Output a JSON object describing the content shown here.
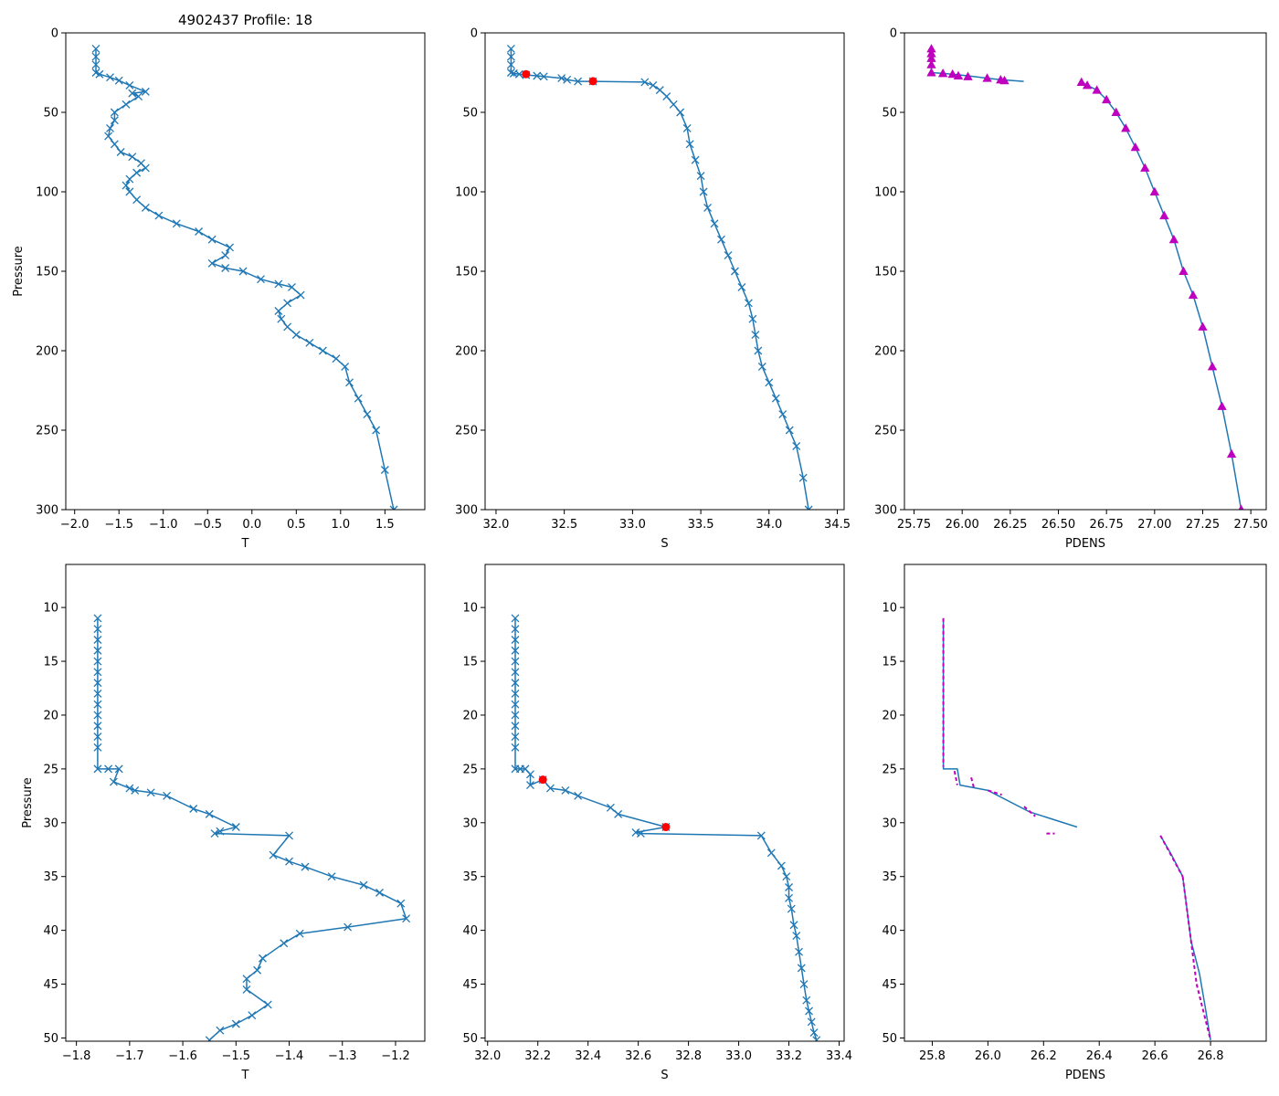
{
  "figure_title": "4902437 Profile: 18",
  "colors": {
    "series": "#1f77b4",
    "density": "#bf00bf",
    "marker_red": "#ff0000",
    "axes": "#000000"
  },
  "chart_data": [
    {
      "id": "t-full",
      "type": "line",
      "marker": "x",
      "title": "4902437 Profile: 18",
      "xlabel": "T",
      "ylabel": "Pressure",
      "xlim": [
        -2.1,
        1.95
      ],
      "ylim": [
        300,
        0
      ],
      "xticks": [
        -2.0,
        -1.5,
        -1.0,
        -0.5,
        0.0,
        0.5,
        1.0,
        1.5
      ],
      "xticklabels": [
        "−2.0",
        "−1.5",
        "−1.0",
        "−0.5",
        "0.0",
        "0.5",
        "1.0",
        "1.5"
      ],
      "yticks": [
        0,
        50,
        100,
        150,
        200,
        250,
        300
      ],
      "yticklabels": [
        "0",
        "50",
        "100",
        "150",
        "200",
        "250",
        "300"
      ],
      "x": [
        -1.76,
        -1.76,
        -1.76,
        -1.76,
        -1.72,
        -1.6,
        -1.5,
        -1.38,
        -1.2,
        -1.35,
        -1.28,
        -1.42,
        -1.55,
        -1.55,
        -1.6,
        -1.62,
        -1.55,
        -1.48,
        -1.35,
        -1.25,
        -1.2,
        -1.3,
        -1.38,
        -1.42,
        -1.38,
        -1.3,
        -1.2,
        -1.05,
        -0.85,
        -0.6,
        -0.45,
        -0.25,
        -0.3,
        -0.45,
        -0.3,
        -0.1,
        0.1,
        0.3,
        0.45,
        0.55,
        0.4,
        0.3,
        0.33,
        0.4,
        0.5,
        0.65,
        0.8,
        0.95,
        1.05,
        1.1,
        1.2,
        1.3,
        1.4,
        1.5,
        1.6
      ],
      "y": [
        10,
        15,
        20,
        25,
        26,
        28,
        30,
        33,
        37,
        38,
        40,
        45,
        50,
        55,
        60,
        65,
        70,
        75,
        78,
        82,
        85,
        88,
        92,
        96,
        100,
        105,
        110,
        115,
        120,
        125,
        130,
        135,
        140,
        145,
        148,
        150,
        155,
        158,
        160,
        165,
        170,
        175,
        180,
        185,
        190,
        195,
        200,
        205,
        210,
        220,
        230,
        240,
        250,
        275,
        300
      ]
    },
    {
      "id": "s-full",
      "type": "line",
      "marker": "x",
      "title": "",
      "xlabel": "S",
      "ylabel": "",
      "xlim": [
        31.92,
        34.55
      ],
      "ylim": [
        300,
        0
      ],
      "xticks": [
        32.0,
        32.5,
        33.0,
        33.5,
        34.0,
        34.5
      ],
      "xticklabels": [
        "32.0",
        "32.5",
        "33.0",
        "33.5",
        "34.0",
        "34.5"
      ],
      "yticks": [
        0,
        50,
        100,
        150,
        200,
        250,
        300
      ],
      "yticklabels": [
        "0",
        "50",
        "100",
        "150",
        "200",
        "250",
        "300"
      ],
      "x": [
        32.11,
        32.11,
        32.11,
        32.11,
        32.13,
        32.17,
        32.22,
        32.3,
        32.35,
        32.48,
        32.52,
        32.6,
        32.71,
        33.09,
        33.15,
        33.2,
        33.25,
        33.3,
        33.35,
        33.4,
        33.42,
        33.46,
        33.5,
        33.52,
        33.55,
        33.6,
        33.65,
        33.7,
        33.75,
        33.8,
        33.85,
        33.88,
        33.9,
        33.92,
        33.95,
        34.0,
        34.05,
        34.1,
        34.15,
        34.2,
        34.25,
        34.29
      ],
      "y": [
        10,
        15,
        20,
        25,
        25.5,
        26,
        26.5,
        27,
        27.5,
        28.5,
        29.5,
        30.5,
        30.5,
        31,
        33,
        36,
        40,
        45,
        50,
        60,
        70,
        80,
        90,
        100,
        110,
        120,
        130,
        140,
        150,
        160,
        170,
        180,
        190,
        200,
        210,
        220,
        230,
        240,
        250,
        260,
        280,
        300
      ],
      "highlight": {
        "x": [
          32.22,
          32.71
        ],
        "y": [
          26,
          30.4
        ]
      }
    },
    {
      "id": "pdens-full",
      "type": "line",
      "marker": "triangle",
      "title": "",
      "xlabel": "PDENS",
      "ylabel": "",
      "xlim": [
        25.7,
        27.58
      ],
      "ylim": [
        300,
        0
      ],
      "xticks": [
        25.75,
        26.0,
        26.25,
        26.5,
        26.75,
        27.0,
        27.25,
        27.5
      ],
      "xticklabels": [
        "25.75",
        "26.00",
        "26.25",
        "26.50",
        "26.75",
        "27.00",
        "27.25",
        "27.50"
      ],
      "yticks": [
        0,
        50,
        100,
        150,
        200,
        250,
        300
      ],
      "yticklabels": [
        "0",
        "50",
        "100",
        "150",
        "200",
        "250",
        "300"
      ],
      "segments": [
        {
          "x": [
            25.84,
            25.84,
            25.84,
            25.84,
            25.9,
            25.95,
            26.03,
            26.13,
            26.2,
            26.32
          ],
          "y": [
            10,
            15,
            20,
            25,
            25.5,
            26,
            27,
            28.5,
            29.5,
            30.5
          ]
        },
        {
          "x": [
            26.62,
            26.65,
            26.7,
            26.75,
            26.8,
            26.85,
            26.9,
            26.95,
            27.0,
            27.05,
            27.1,
            27.15,
            27.2,
            27.25,
            27.3,
            27.35,
            27.4,
            27.45
          ],
          "y": [
            31,
            33,
            36,
            42,
            50,
            60,
            72,
            85,
            100,
            115,
            130,
            150,
            165,
            185,
            210,
            235,
            265,
            300
          ]
        }
      ],
      "markers": {
        "x": [
          25.84,
          25.84,
          25.84,
          25.84,
          25.84,
          25.9,
          25.95,
          25.98,
          26.03,
          26.13,
          26.2,
          26.22,
          26.62,
          26.65,
          26.7,
          26.75,
          26.8,
          26.85,
          26.9,
          26.95,
          27.0,
          27.05,
          27.1,
          27.15,
          27.2,
          27.25,
          27.3,
          27.35,
          27.4,
          27.45
        ],
        "y": [
          10,
          13,
          16,
          20,
          25,
          25.5,
          26,
          27,
          27.5,
          28.5,
          29.5,
          30,
          31,
          33,
          36,
          42,
          50,
          60,
          72,
          85,
          100,
          115,
          130,
          150,
          165,
          185,
          210,
          235,
          265,
          300
        ]
      }
    },
    {
      "id": "t-zoom",
      "type": "line",
      "marker": "x",
      "title": "",
      "xlabel": "T",
      "ylabel": "Pressure",
      "xlim": [
        -1.82,
        -1.145
      ],
      "ylim": [
        50.3,
        6
      ],
      "xticks": [
        -1.8,
        -1.7,
        -1.6,
        -1.5,
        -1.4,
        -1.3,
        -1.2
      ],
      "xticklabels": [
        "−1.8",
        "−1.7",
        "−1.6",
        "−1.5",
        "−1.4",
        "−1.3",
        "−1.2"
      ],
      "yticks": [
        10,
        15,
        20,
        25,
        30,
        35,
        40,
        45,
        50
      ],
      "yticklabels": [
        "10",
        "15",
        "20",
        "25",
        "30",
        "35",
        "40",
        "45",
        "50"
      ],
      "x": [
        -1.76,
        -1.76,
        -1.76,
        -1.76,
        -1.76,
        -1.76,
        -1.76,
        -1.76,
        -1.76,
        -1.76,
        -1.76,
        -1.76,
        -1.76,
        -1.76,
        -1.74,
        -1.72,
        -1.73,
        -1.7,
        -1.69,
        -1.66,
        -1.63,
        -1.58,
        -1.55,
        -1.5,
        -1.53,
        -1.54,
        -1.4,
        -1.43,
        -1.4,
        -1.37,
        -1.32,
        -1.26,
        -1.23,
        -1.19,
        -1.18,
        -1.29,
        -1.38,
        -1.41,
        -1.45,
        -1.46,
        -1.48,
        -1.48,
        -1.44,
        -1.47,
        -1.5,
        -1.53,
        -1.55
      ],
      "y": [
        11,
        12,
        13,
        14,
        15,
        16,
        17,
        18,
        19,
        20,
        21,
        22,
        23,
        25,
        25,
        25,
        26.2,
        26.8,
        27,
        27.2,
        27.5,
        28.7,
        29.2,
        30.4,
        30.8,
        31,
        31.2,
        33,
        33.6,
        34.1,
        35,
        35.8,
        36.5,
        37.5,
        38.9,
        39.7,
        40.3,
        41.2,
        42.6,
        43.7,
        44.5,
        45.5,
        46.9,
        47.9,
        48.7,
        49.3,
        50.2
      ]
    },
    {
      "id": "s-zoom",
      "type": "line",
      "marker": "x",
      "title": "",
      "xlabel": "S",
      "ylabel": "",
      "xlim": [
        31.99,
        33.42
      ],
      "ylim": [
        50.3,
        6
      ],
      "xticks": [
        32.0,
        32.2,
        32.4,
        32.6,
        32.8,
        33.0,
        33.2,
        33.4
      ],
      "xticklabels": [
        "32.0",
        "32.2",
        "32.4",
        "32.6",
        "32.8",
        "33.0",
        "33.2",
        "33.4"
      ],
      "yticks": [
        10,
        15,
        20,
        25,
        30,
        35,
        40,
        45,
        50
      ],
      "yticklabels": [
        "10",
        "15",
        "20",
        "25",
        "30",
        "35",
        "40",
        "45",
        "50"
      ],
      "x": [
        32.11,
        32.11,
        32.11,
        32.11,
        32.11,
        32.11,
        32.11,
        32.11,
        32.11,
        32.11,
        32.11,
        32.11,
        32.11,
        32.11,
        32.13,
        32.15,
        32.17,
        32.17,
        32.22,
        32.25,
        32.31,
        32.36,
        32.49,
        32.52,
        32.71,
        32.59,
        32.61,
        33.09,
        33.13,
        33.17,
        33.19,
        33.2,
        33.2,
        33.21,
        33.22,
        33.23,
        33.24,
        33.25,
        33.26,
        33.27,
        33.28,
        33.29,
        33.3,
        33.31
      ],
      "y": [
        11,
        12,
        13,
        14,
        15,
        16,
        17,
        18,
        19,
        20,
        21,
        22,
        23,
        25,
        25,
        25,
        25.5,
        26.5,
        26,
        26.8,
        27,
        27.5,
        28.6,
        29.2,
        30.4,
        30.9,
        31,
        31.2,
        32.8,
        34,
        35,
        36,
        37,
        38,
        39.5,
        40.5,
        42,
        43.5,
        45,
        46.5,
        47.5,
        48.5,
        49.5,
        50.2
      ],
      "highlight": {
        "x": [
          32.22,
          32.71
        ],
        "y": [
          26,
          30.4
        ]
      }
    },
    {
      "id": "pdens-zoom",
      "type": "line",
      "marker": "none",
      "title": "",
      "xlabel": "PDENS",
      "ylabel": "",
      "xlim": [
        25.7,
        27.0
      ],
      "ylim": [
        50.3,
        6
      ],
      "xticks": [
        25.8,
        26.0,
        26.2,
        26.4,
        26.6,
        26.8
      ],
      "xticklabels": [
        "25.8",
        "26.0",
        "26.2",
        "26.4",
        "26.6",
        "26.8"
      ],
      "yticks": [
        10,
        15,
        20,
        25,
        30,
        35,
        40,
        45,
        50
      ],
      "yticklabels": [
        "10",
        "15",
        "20",
        "25",
        "30",
        "35",
        "40",
        "45",
        "50"
      ],
      "segments": [
        {
          "x": [
            25.84,
            25.84,
            25.84,
            25.84,
            25.84,
            25.89,
            25.9,
            26.0,
            26.15,
            26.32
          ],
          "y": [
            11,
            15,
            20,
            24,
            25,
            25,
            26.5,
            27,
            29,
            30.4
          ]
        },
        {
          "x": [
            26.62,
            26.66,
            26.7,
            26.71,
            26.72,
            26.73,
            26.76,
            26.78,
            26.8
          ],
          "y": [
            31.2,
            33,
            35,
            37,
            39,
            41,
            44,
            47,
            50.2
          ]
        }
      ],
      "dashes": [
        {
          "x": [
            25.84,
            25.84
          ],
          "y": [
            11,
            24.8
          ]
        },
        {
          "x": [
            25.88,
            25.89
          ],
          "y": [
            25.2,
            26.5
          ]
        },
        {
          "x": [
            25.94,
            25.95
          ],
          "y": [
            25.8,
            26.8
          ]
        },
        {
          "x": [
            26.0,
            26.05
          ],
          "y": [
            27.0,
            27.4
          ]
        },
        {
          "x": [
            26.13,
            26.17
          ],
          "y": [
            28.5,
            29.4
          ]
        },
        {
          "x": [
            26.21,
            26.24
          ],
          "y": [
            31.0,
            31.0
          ]
        },
        {
          "x": [
            26.62,
            26.7
          ],
          "y": [
            31.2,
            35
          ]
        },
        {
          "x": [
            26.7,
            26.75
          ],
          "y": [
            35,
            45
          ]
        },
        {
          "x": [
            26.75,
            26.8
          ],
          "y": [
            45,
            50.2
          ]
        }
      ]
    }
  ]
}
